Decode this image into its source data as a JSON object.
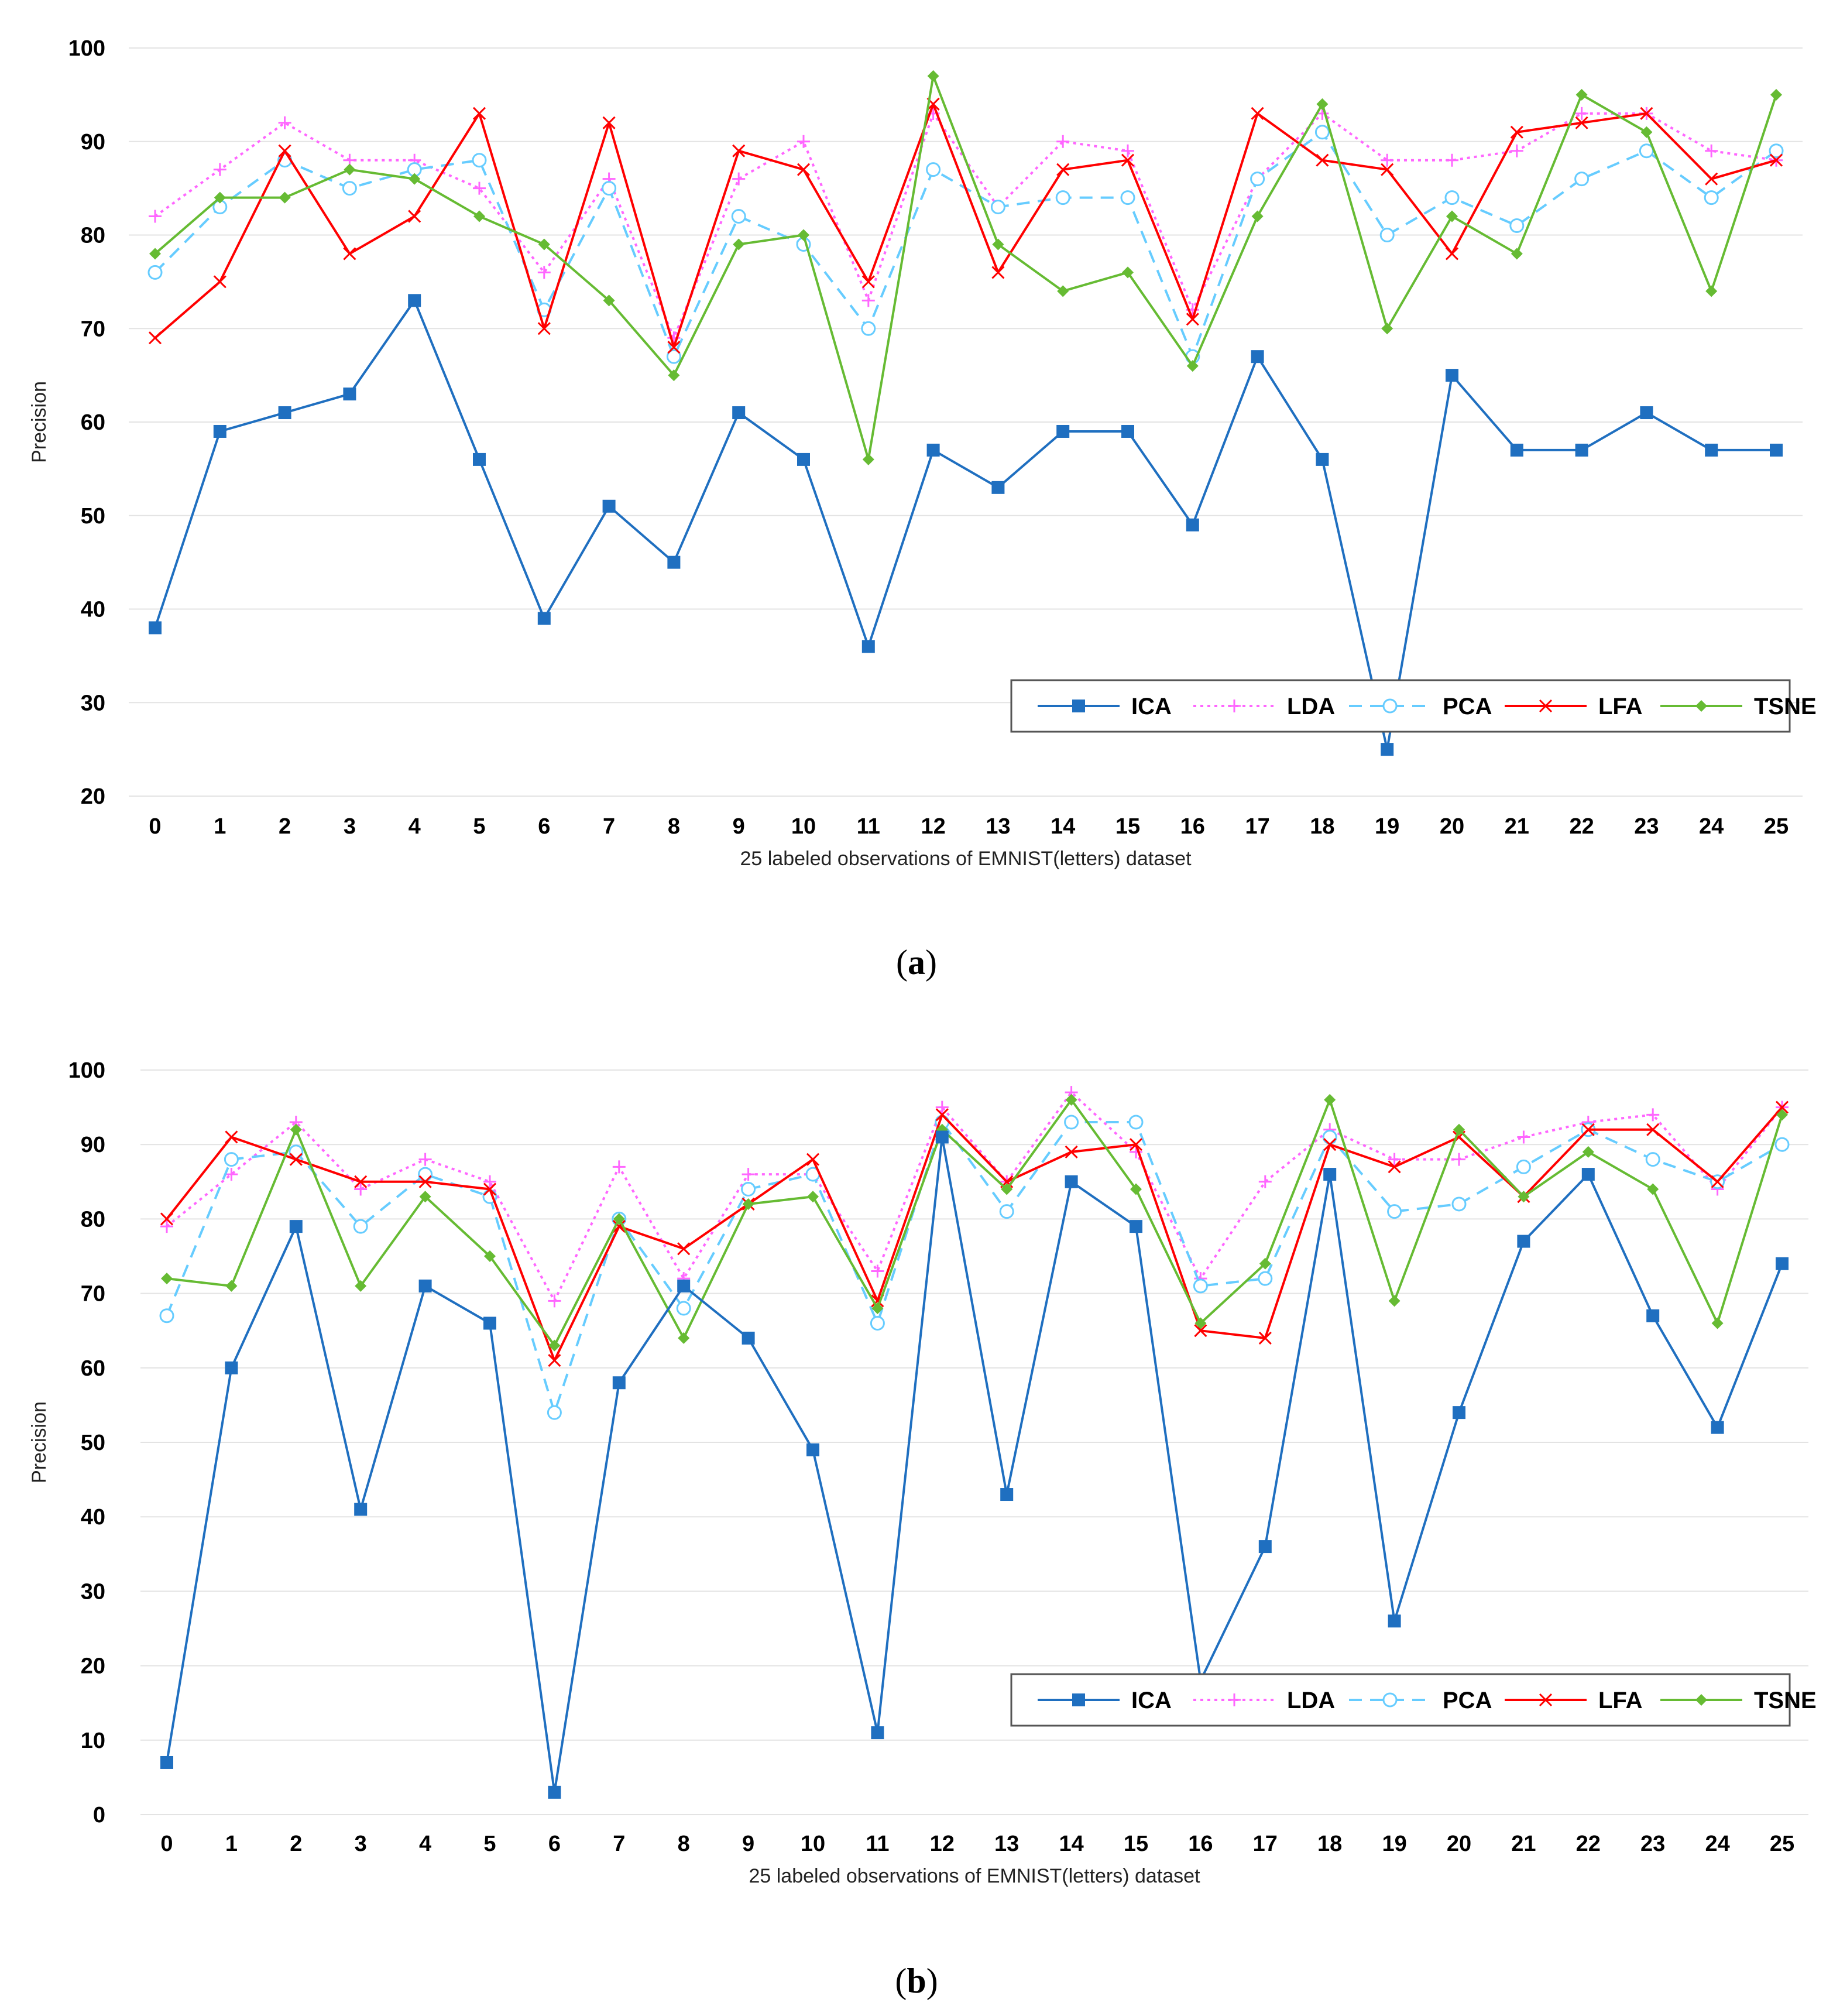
{
  "captions": {
    "a": {
      "open": "(",
      "letter": "a",
      "close": ")"
    },
    "b": {
      "open": "(",
      "letter": "b",
      "close": ")"
    }
  },
  "chart_data": [
    {
      "type": "line",
      "id": "a",
      "title": "",
      "xlabel": "25 labeled observations of EMNIST(letters) dataset",
      "ylabel": "Precision",
      "ylim": [
        20,
        100
      ],
      "yticks": [
        20,
        30,
        40,
        50,
        60,
        70,
        80,
        90,
        100
      ],
      "categories": [
        "0",
        "1",
        "2",
        "3",
        "4",
        "5",
        "6",
        "7",
        "8",
        "9",
        "10",
        "11",
        "12",
        "13",
        "14",
        "15",
        "16",
        "17",
        "18",
        "19",
        "20",
        "21",
        "22",
        "23",
        "24",
        "25"
      ],
      "grid": true,
      "legend_position": "bottom-right",
      "series": [
        {
          "name": "ICA",
          "color": "#1f6fc0",
          "marker": "square",
          "dash": "solid",
          "values": [
            38,
            59,
            61,
            63,
            73,
            56,
            39,
            51,
            45,
            61,
            56,
            36,
            57,
            53,
            59,
            59,
            49,
            67,
            56,
            25,
            65,
            57,
            57,
            61,
            57,
            57
          ]
        },
        {
          "name": "LDA",
          "color": "#ff66ff",
          "marker": "plus",
          "dash": "dotted",
          "values": [
            82,
            87,
            92,
            88,
            88,
            85,
            76,
            86,
            69,
            86,
            90,
            73,
            93,
            83,
            90,
            89,
            72,
            86,
            93,
            88,
            88,
            89,
            93,
            93,
            89,
            88
          ]
        },
        {
          "name": "PCA",
          "color": "#66ccff",
          "marker": "circle-open",
          "dash": "dashed",
          "values": [
            76,
            83,
            88,
            85,
            87,
            88,
            72,
            85,
            67,
            82,
            79,
            70,
            87,
            83,
            84,
            84,
            67,
            86,
            91,
            80,
            84,
            81,
            86,
            89,
            84,
            89
          ]
        },
        {
          "name": "LFA",
          "color": "#ff0000",
          "marker": "x",
          "dash": "solid",
          "values": [
            69,
            75,
            89,
            78,
            82,
            93,
            70,
            92,
            68,
            89,
            87,
            75,
            94,
            76,
            87,
            88,
            71,
            93,
            88,
            87,
            78,
            91,
            92,
            93,
            86,
            88
          ]
        },
        {
          "name": "TSNE",
          "color": "#66bb33",
          "marker": "diamond",
          "dash": "solid",
          "values": [
            78,
            84,
            84,
            87,
            86,
            82,
            79,
            73,
            65,
            79,
            80,
            56,
            97,
            79,
            74,
            76,
            66,
            82,
            94,
            70,
            82,
            78,
            95,
            91,
            74,
            95
          ]
        }
      ]
    },
    {
      "type": "line",
      "id": "b",
      "title": "",
      "xlabel": "25 labeled observations of EMNIST(letters) dataset",
      "ylabel": "Precision",
      "ylim": [
        0,
        100
      ],
      "yticks": [
        0,
        10,
        20,
        30,
        40,
        50,
        60,
        70,
        80,
        90,
        100
      ],
      "categories": [
        "0",
        "1",
        "2",
        "3",
        "4",
        "5",
        "6",
        "7",
        "8",
        "9",
        "10",
        "11",
        "12",
        "13",
        "14",
        "15",
        "16",
        "17",
        "18",
        "19",
        "20",
        "21",
        "22",
        "23",
        "24",
        "25"
      ],
      "grid": true,
      "legend_position": "bottom-right",
      "series": [
        {
          "name": "ICA",
          "color": "#1f6fc0",
          "marker": "square",
          "dash": "solid",
          "values": [
            7,
            60,
            79,
            41,
            71,
            66,
            3,
            58,
            71,
            64,
            49,
            11,
            91,
            43,
            85,
            79,
            18,
            36,
            86,
            26,
            54,
            77,
            86,
            67,
            52,
            74
          ]
        },
        {
          "name": "LDA",
          "color": "#ff66ff",
          "marker": "plus",
          "dash": "dotted",
          "values": [
            79,
            86,
            93,
            84,
            88,
            85,
            69,
            87,
            72,
            86,
            86,
            73,
            95,
            85,
            97,
            89,
            72,
            85,
            92,
            88,
            88,
            91,
            93,
            94,
            84,
            95
          ]
        },
        {
          "name": "PCA",
          "color": "#66ccff",
          "marker": "circle-open",
          "dash": "dashed",
          "values": [
            67,
            88,
            89,
            79,
            86,
            83,
            54,
            80,
            68,
            84,
            86,
            66,
            93,
            81,
            93,
            93,
            71,
            72,
            91,
            81,
            82,
            87,
            92,
            88,
            85,
            90
          ]
        },
        {
          "name": "LFA",
          "color": "#ff0000",
          "marker": "x",
          "dash": "solid",
          "values": [
            80,
            91,
            88,
            85,
            85,
            84,
            61,
            79,
            76,
            82,
            88,
            69,
            94,
            85,
            89,
            90,
            65,
            64,
            90,
            87,
            91,
            83,
            92,
            92,
            85,
            95
          ]
        },
        {
          "name": "TSNE",
          "color": "#66bb33",
          "marker": "diamond",
          "dash": "solid",
          "values": [
            72,
            71,
            92,
            71,
            83,
            75,
            63,
            80,
            64,
            82,
            83,
            68,
            92,
            84,
            96,
            84,
            66,
            74,
            96,
            69,
            92,
            83,
            89,
            84,
            66,
            94
          ]
        }
      ]
    }
  ]
}
